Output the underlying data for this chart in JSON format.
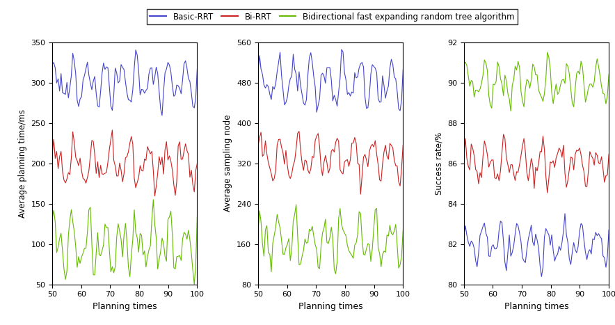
{
  "legend_labels": [
    "Basic-RRT",
    "Bi-RRT",
    "Bidirectional fast expanding random tree algorithm"
  ],
  "colors": {
    "blue": "#4444CC",
    "red": "#CC2222",
    "green": "#66BB00"
  },
  "subplot1": {
    "ylabel": "Average planning time/ms",
    "xlabel": "Planning times",
    "ylim": [
      50,
      350
    ],
    "yticks": [
      50,
      100,
      150,
      200,
      250,
      300,
      350
    ],
    "xlim": [
      50,
      100
    ],
    "xticks": [
      50,
      60,
      70,
      80,
      90,
      100
    ]
  },
  "subplot2": {
    "ylabel": "Average sampling node",
    "xlabel": "Planning times",
    "ylim": [
      80,
      560
    ],
    "yticks": [
      80,
      160,
      240,
      320,
      400,
      480,
      560
    ],
    "xlim": [
      50,
      100
    ],
    "xticks": [
      50,
      60,
      70,
      80,
      90,
      100
    ]
  },
  "subplot3": {
    "ylabel": "Success rate/%",
    "xlabel": "Planning times",
    "ylim": [
      80,
      92
    ],
    "yticks": [
      80,
      82,
      84,
      86,
      88,
      90,
      92
    ],
    "xlim": [
      50,
      100
    ],
    "xticks": [
      50,
      60,
      70,
      80,
      90,
      100
    ]
  }
}
